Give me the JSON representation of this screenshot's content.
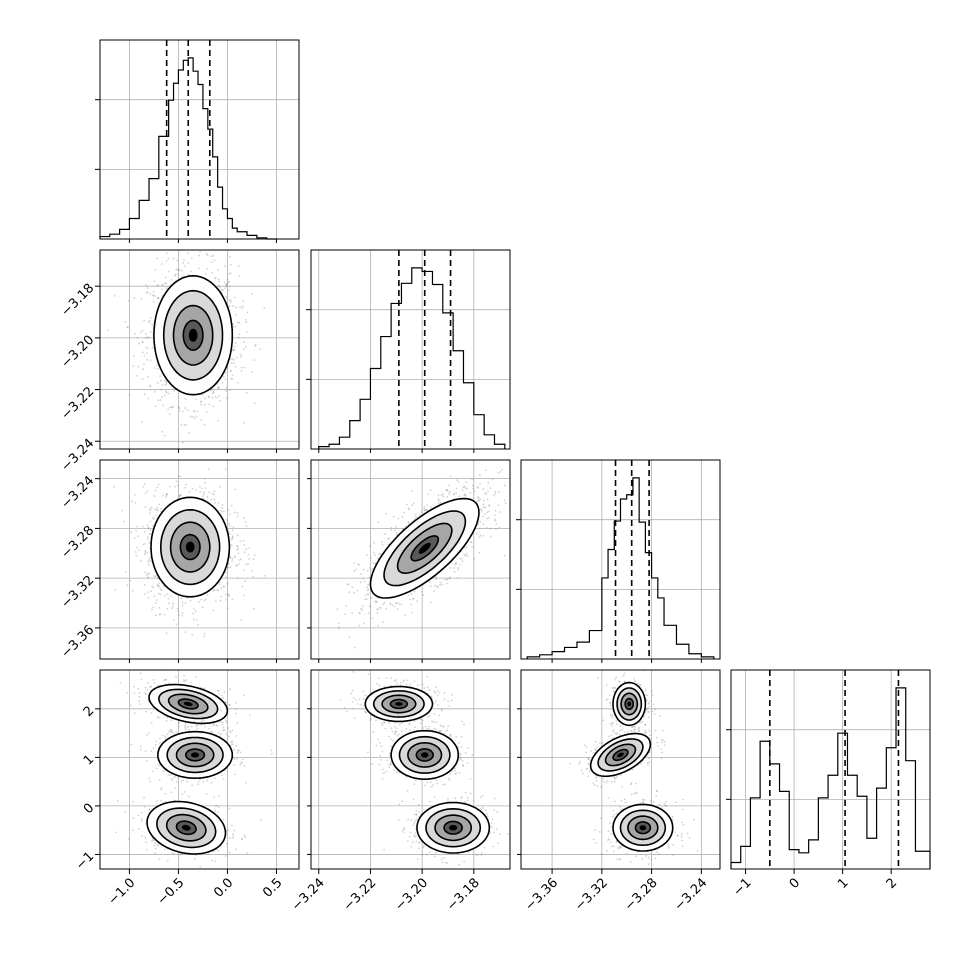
{
  "chart_data": {
    "type": "corner",
    "title": "",
    "grid": true,
    "colors": {
      "line": "#000000",
      "grid": "#b0b0b0",
      "points": "#7f7f7f",
      "background": "#ffffff"
    },
    "parameters": [
      {
        "index": 0,
        "range": [
          -1.3,
          0.73
        ],
        "ticks": [
          -1.0,
          -0.5,
          0.0,
          0.5
        ],
        "tick_labels": [
          "−1.0",
          "−0.5",
          "0.0",
          "0.5"
        ],
        "quantiles": [
          -0.62,
          -0.4,
          -0.18
        ],
        "hist_bins": [
          -1.3,
          -1.2,
          -1.1,
          -1.0,
          -0.9,
          -0.8,
          -0.7,
          -0.6,
          -0.55,
          -0.5,
          -0.45,
          -0.4,
          -0.35,
          -0.3,
          -0.25,
          -0.2,
          -0.15,
          -0.1,
          -0.05,
          0.0,
          0.05,
          0.1,
          0.2,
          0.3,
          0.4,
          0.5
        ],
        "hist_counts": [
          2,
          4,
          8,
          17,
          32,
          50,
          85,
          115,
          129,
          140,
          148,
          150,
          139,
          128,
          108,
          91,
          68,
          43,
          25,
          17,
          9,
          6,
          3,
          1,
          0
        ]
      },
      {
        "index": 1,
        "range": [
          -3.243,
          -3.166
        ],
        "ticks": [
          -3.24,
          -3.22,
          -3.2,
          -3.18
        ],
        "tick_labels": [
          "−3.24",
          "−3.22",
          "−3.20",
          "−3.18"
        ],
        "quantiles": [
          -3.209,
          -3.199,
          -3.189
        ],
        "hist_bins": [
          -3.24,
          -3.236,
          -3.232,
          -3.228,
          -3.224,
          -3.22,
          -3.216,
          -3.212,
          -3.208,
          -3.204,
          -3.2,
          -3.196,
          -3.192,
          -3.188,
          -3.184,
          -3.18,
          -3.176,
          -3.172,
          -3.168
        ],
        "hist_counts": [
          2,
          4,
          10,
          24,
          42,
          68,
          95,
          123,
          140,
          153,
          150,
          139,
          115,
          83,
          56,
          29,
          12,
          4
        ]
      },
      {
        "index": 2,
        "range": [
          -3.385,
          -3.225
        ],
        "ticks": [
          -3.36,
          -3.32,
          -3.28,
          -3.24
        ],
        "tick_labels": [
          "−3.36",
          "−3.32",
          "−3.28",
          "−3.24"
        ],
        "quantiles": [
          -3.309,
          -3.296,
          -3.282
        ],
        "hist_bins": [
          -3.38,
          -3.37,
          -3.36,
          -3.35,
          -3.34,
          -3.33,
          -3.32,
          -3.315,
          -3.31,
          -3.305,
          -3.3,
          -3.295,
          -3.29,
          -3.285,
          -3.28,
          -3.275,
          -3.27,
          -3.26,
          -3.25,
          -3.24,
          -3.23
        ],
        "hist_counts": [
          2,
          4,
          7,
          11,
          16,
          27,
          77,
          104,
          131,
          152,
          156,
          172,
          130,
          101,
          77,
          58,
          32,
          14,
          5,
          2
        ]
      },
      {
        "index": 3,
        "range": [
          -1.3,
          2.8
        ],
        "ticks": [
          -1,
          0,
          1,
          2
        ],
        "tick_labels": [
          "−1",
          "0",
          "1",
          "2"
        ],
        "quantiles": [
          -0.5,
          1.05,
          2.15
        ],
        "hist_bins": [
          -1.3,
          -1.1,
          -0.9,
          -0.7,
          -0.5,
          -0.3,
          -0.1,
          0.1,
          0.3,
          0.5,
          0.7,
          0.9,
          1.1,
          1.3,
          1.5,
          1.7,
          1.9,
          2.1,
          2.3,
          2.5,
          2.8
        ],
        "hist_counts": [
          4,
          14,
          44,
          79,
          65,
          48,
          12,
          10,
          18,
          44,
          58,
          84,
          58,
          45,
          19,
          50,
          75,
          112,
          67,
          11
        ]
      }
    ],
    "blobs": [
      {
        "px": 0,
        "py": 1,
        "cx": -0.35,
        "cy": -3.199,
        "sx": 0.2,
        "sy": 0.0115,
        "rho": 0.0
      },
      {
        "px": 0,
        "py": 2,
        "cx": -0.38,
        "cy": -3.295,
        "sx": 0.2,
        "sy": 0.02,
        "rho": 0.0
      },
      {
        "px": 1,
        "py": 2,
        "cx": -3.199,
        "cy": -3.296,
        "sx": 0.0105,
        "sy": 0.02,
        "rho": 0.72
      },
      {
        "px": 0,
        "py": 3,
        "cx": -0.4,
        "cy": 2.1,
        "sx": 0.2,
        "sy": 0.2,
        "rho": -0.35
      },
      {
        "px": 0,
        "py": 3,
        "cx": -0.33,
        "cy": 1.05,
        "sx": 0.19,
        "sy": 0.24,
        "rho": 0.0
      },
      {
        "px": 0,
        "py": 3,
        "cx": -0.42,
        "cy": -0.45,
        "sx": 0.2,
        "sy": 0.27,
        "rho": -0.2
      },
      {
        "px": 1,
        "py": 3,
        "cx": -3.209,
        "cy": 2.1,
        "sx": 0.0065,
        "sy": 0.18,
        "rho": 0.0
      },
      {
        "px": 1,
        "py": 3,
        "cx": -3.199,
        "cy": 1.05,
        "sx": 0.0065,
        "sy": 0.25,
        "rho": 0.0
      },
      {
        "px": 1,
        "py": 3,
        "cx": -3.188,
        "cy": -0.45,
        "sx": 0.007,
        "sy": 0.26,
        "rho": 0.0
      },
      {
        "px": 2,
        "py": 3,
        "cx": -3.298,
        "cy": 2.1,
        "sx": 0.0065,
        "sy": 0.22,
        "rho": 0.0
      },
      {
        "px": 2,
        "py": 3,
        "cx": -3.305,
        "cy": 1.05,
        "sx": 0.012,
        "sy": 0.22,
        "rho": 0.5
      },
      {
        "px": 2,
        "py": 3,
        "cx": -3.287,
        "cy": -0.45,
        "sx": 0.012,
        "sy": 0.24,
        "rho": 0.0
      }
    ]
  }
}
